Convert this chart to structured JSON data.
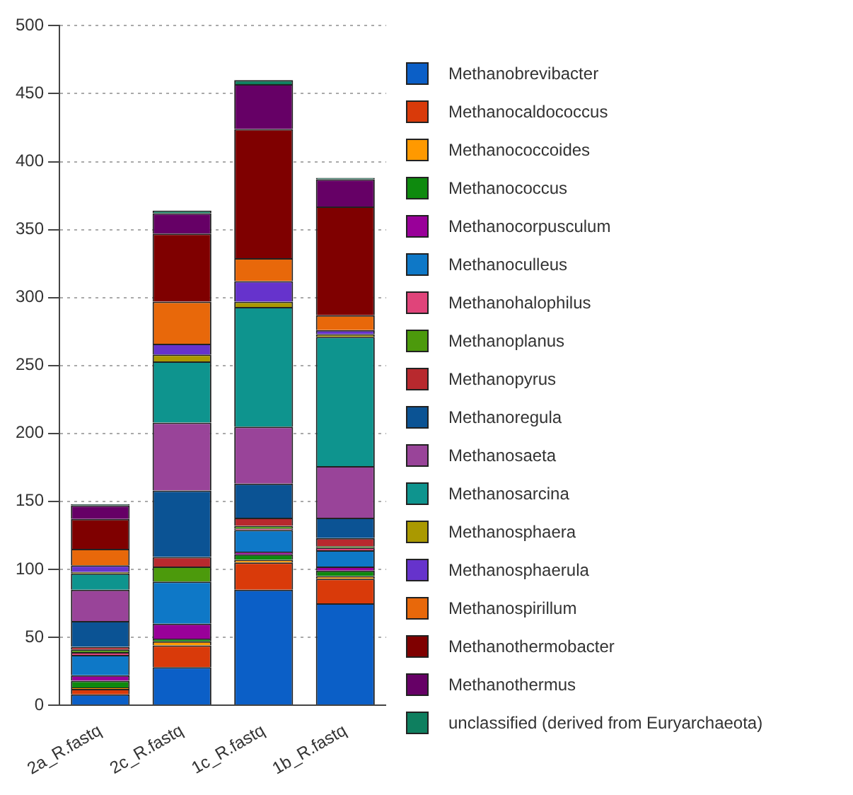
{
  "chart_data": {
    "type": "bar",
    "stacked": true,
    "categories": [
      "2a_R.fastq",
      "2c_R.fastq",
      "1c_R.fastq",
      "1b_R.fastq"
    ],
    "series": [
      {
        "name": "Methanobrevibacter",
        "color": "#0b5fc7",
        "values": [
          8,
          28,
          85,
          75
        ]
      },
      {
        "name": "Methanocaldococcus",
        "color": "#d93a0a",
        "values": [
          4,
          16,
          20,
          18
        ]
      },
      {
        "name": "Methanococcoides",
        "color": "#ff9900",
        "values": [
          1,
          3,
          2,
          2
        ]
      },
      {
        "name": "Methanococcus",
        "color": "#0e8a0e",
        "values": [
          5,
          2,
          4,
          4
        ]
      },
      {
        "name": "Methanocorpusculum",
        "color": "#990099",
        "values": [
          4,
          11,
          2,
          3
        ]
      },
      {
        "name": "Methanoculleus",
        "color": "#0e78c7",
        "values": [
          15,
          31,
          16,
          12
        ]
      },
      {
        "name": "Methanohalophilus",
        "color": "#e0447a",
        "values": [
          2,
          0,
          1,
          2
        ]
      },
      {
        "name": "Methanoplanus",
        "color": "#4c9a0c",
        "values": [
          2,
          11,
          2,
          1
        ]
      },
      {
        "name": "Methanopyrus",
        "color": "#b8292e",
        "values": [
          2,
          7,
          6,
          6
        ]
      },
      {
        "name": "Methanoregula",
        "color": "#0b5394",
        "values": [
          19,
          49,
          25,
          15
        ]
      },
      {
        "name": "Methanosaeta",
        "color": "#994499",
        "values": [
          23,
          50,
          42,
          38
        ]
      },
      {
        "name": "Methanosarcina",
        "color": "#0e948e",
        "values": [
          12,
          45,
          88,
          95
        ]
      },
      {
        "name": "Methanosphaera",
        "color": "#aa9900",
        "values": [
          1,
          5,
          4,
          2
        ]
      },
      {
        "name": "Methanosphaerula",
        "color": "#6633cc",
        "values": [
          5,
          8,
          15,
          3
        ]
      },
      {
        "name": "Methanospirillum",
        "color": "#e8680a",
        "values": [
          12,
          31,
          17,
          11
        ]
      },
      {
        "name": "Methanothermobacter",
        "color": "#7f0000",
        "values": [
          22,
          50,
          95,
          80
        ]
      },
      {
        "name": "Methanothermus",
        "color": "#660066",
        "values": [
          10,
          15,
          33,
          20
        ]
      },
      {
        "name": "unclassified (derived from Euryarchaeota)",
        "color": "#0e7f5f",
        "values": [
          1,
          2,
          3,
          1
        ]
      }
    ],
    "ylim": [
      0,
      500
    ],
    "yticks": [
      0,
      50,
      100,
      150,
      200,
      250,
      300,
      350,
      400,
      450,
      500
    ],
    "grid": "y",
    "legend": "right"
  }
}
